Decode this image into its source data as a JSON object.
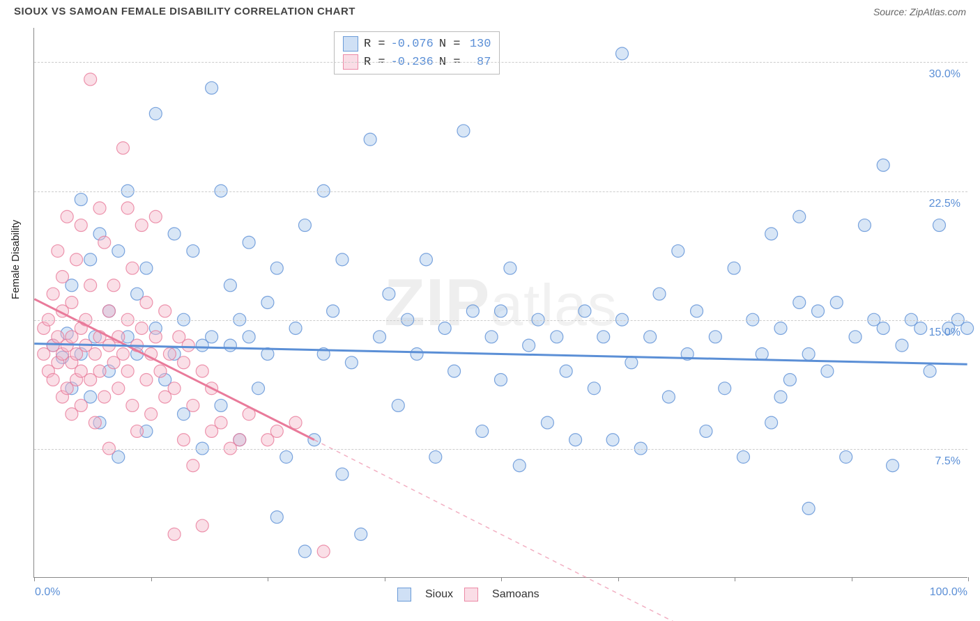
{
  "title": "SIOUX VS SAMOAN FEMALE DISABILITY CORRELATION CHART",
  "source": "Source: ZipAtlas.com",
  "y_axis_title": "Female Disability",
  "watermark_prefix": "ZIP",
  "watermark_suffix": "atlas",
  "chart": {
    "type": "scatter",
    "xlim": [
      0,
      100
    ],
    "ylim": [
      0,
      32
    ],
    "x_start_label": "0.0%",
    "x_end_label": "100.0%",
    "y_ticks": [
      7.5,
      15.0,
      22.5,
      30.0
    ],
    "y_tick_labels": [
      "7.5%",
      "15.0%",
      "22.5%",
      "30.0%"
    ],
    "x_minor_ticks": [
      0,
      12.5,
      25,
      37.5,
      50,
      62.5,
      75,
      87.5,
      100
    ],
    "grid_color": "#cccccc",
    "background_color": "#ffffff",
    "marker_radius": 9,
    "marker_opacity": 0.45,
    "line_width": 3,
    "label_color": "#5b8fd6",
    "axis_font_size": 16
  },
  "series": [
    {
      "name": "Sioux",
      "color_fill": "#a9c7ea",
      "color_stroke": "#5b8fd6",
      "swatch_fill": "#cfe0f5",
      "swatch_border": "#6a9bd8",
      "R": "-0.076",
      "N": "130",
      "trend": {
        "x1": 0,
        "y1": 13.6,
        "x2": 100,
        "y2": 12.4,
        "dashed": false
      },
      "points": [
        [
          2,
          13.5
        ],
        [
          3,
          12.8
        ],
        [
          3.5,
          14.2
        ],
        [
          4,
          11
        ],
        [
          4,
          17
        ],
        [
          5,
          13
        ],
        [
          5,
          22
        ],
        [
          6,
          10.5
        ],
        [
          6,
          18.5
        ],
        [
          6.5,
          14
        ],
        [
          7,
          20
        ],
        [
          7,
          9
        ],
        [
          8,
          15.5
        ],
        [
          8,
          12
        ],
        [
          9,
          19
        ],
        [
          9,
          7
        ],
        [
          10,
          14
        ],
        [
          10,
          22.5
        ],
        [
          11,
          13
        ],
        [
          11,
          16.5
        ],
        [
          12,
          8.5
        ],
        [
          12,
          18
        ],
        [
          13,
          14.5
        ],
        [
          13,
          27
        ],
        [
          14,
          11.5
        ],
        [
          15,
          20
        ],
        [
          15,
          13
        ],
        [
          16,
          9.5
        ],
        [
          16,
          15
        ],
        [
          17,
          19
        ],
        [
          18,
          7.5
        ],
        [
          18,
          13.5
        ],
        [
          19,
          28.5
        ],
        [
          19,
          14
        ],
        [
          20,
          22.5
        ],
        [
          20,
          10
        ],
        [
          21,
          17
        ],
        [
          21,
          13.5
        ],
        [
          22,
          15
        ],
        [
          22,
          8
        ],
        [
          23,
          19.5
        ],
        [
          23,
          14
        ],
        [
          24,
          11
        ],
        [
          25,
          16
        ],
        [
          25,
          13
        ],
        [
          26,
          3.5
        ],
        [
          26,
          18
        ],
        [
          27,
          7
        ],
        [
          28,
          14.5
        ],
        [
          29,
          1.5
        ],
        [
          29,
          20.5
        ],
        [
          30,
          8
        ],
        [
          31,
          13
        ],
        [
          31,
          22.5
        ],
        [
          32,
          15.5
        ],
        [
          33,
          6
        ],
        [
          33,
          18.5
        ],
        [
          34,
          12.5
        ],
        [
          35,
          2.5
        ],
        [
          36,
          25.5
        ],
        [
          37,
          14
        ],
        [
          38,
          16.5
        ],
        [
          39,
          10
        ],
        [
          40,
          15
        ],
        [
          41,
          13
        ],
        [
          42,
          18.5
        ],
        [
          43,
          7
        ],
        [
          44,
          14.5
        ],
        [
          45,
          12
        ],
        [
          46,
          26
        ],
        [
          47,
          15.5
        ],
        [
          48,
          8.5
        ],
        [
          49,
          14
        ],
        [
          50,
          11.5
        ],
        [
          50,
          15.5
        ],
        [
          51,
          18
        ],
        [
          52,
          6.5
        ],
        [
          53,
          13.5
        ],
        [
          54,
          15
        ],
        [
          55,
          9
        ],
        [
          56,
          14
        ],
        [
          57,
          12
        ],
        [
          58,
          8
        ],
        [
          59,
          15.5
        ],
        [
          60,
          11
        ],
        [
          61,
          14
        ],
        [
          62,
          8
        ],
        [
          63,
          30.5
        ],
        [
          63,
          15
        ],
        [
          64,
          12.5
        ],
        [
          65,
          7.5
        ],
        [
          66,
          14
        ],
        [
          67,
          16.5
        ],
        [
          68,
          10.5
        ],
        [
          69,
          19
        ],
        [
          70,
          13
        ],
        [
          71,
          15.5
        ],
        [
          72,
          8.5
        ],
        [
          73,
          14
        ],
        [
          74,
          11
        ],
        [
          75,
          18
        ],
        [
          76,
          7
        ],
        [
          77,
          15
        ],
        [
          78,
          13
        ],
        [
          79,
          20
        ],
        [
          79,
          9
        ],
        [
          80,
          14.5
        ],
        [
          80,
          10.5
        ],
        [
          81,
          11.5
        ],
        [
          82,
          21
        ],
        [
          82,
          16
        ],
        [
          83,
          4
        ],
        [
          83,
          13
        ],
        [
          84,
          15.5
        ],
        [
          85,
          12
        ],
        [
          86,
          16
        ],
        [
          87,
          7
        ],
        [
          88,
          14
        ],
        [
          89,
          20.5
        ],
        [
          90,
          15
        ],
        [
          91,
          14.5
        ],
        [
          91,
          24
        ],
        [
          92,
          6.5
        ],
        [
          93,
          13.5
        ],
        [
          94,
          15
        ],
        [
          95,
          14.5
        ],
        [
          96,
          12
        ],
        [
          97,
          20.5
        ],
        [
          98,
          14.5
        ],
        [
          99,
          15
        ],
        [
          100,
          14.5
        ]
      ]
    },
    {
      "name": "Samoans",
      "color_fill": "#f5b8c9",
      "color_stroke": "#e97a9a",
      "swatch_fill": "#fadde6",
      "swatch_border": "#ec8aa6",
      "R": "-0.236",
      "N": "87",
      "trend": {
        "x1": 0,
        "y1": 16.2,
        "x2": 30,
        "y2": 8.0,
        "dashed_ext_x": 70,
        "dashed_ext_y": -3
      },
      "points": [
        [
          1,
          13
        ],
        [
          1,
          14.5
        ],
        [
          1.5,
          12
        ],
        [
          1.5,
          15
        ],
        [
          2,
          13.5
        ],
        [
          2,
          11.5
        ],
        [
          2,
          16.5
        ],
        [
          2.5,
          14
        ],
        [
          2.5,
          12.5
        ],
        [
          2.5,
          19
        ],
        [
          3,
          13
        ],
        [
          3,
          10.5
        ],
        [
          3,
          15.5
        ],
        [
          3,
          17.5
        ],
        [
          3.5,
          13.5
        ],
        [
          3.5,
          11
        ],
        [
          3.5,
          21
        ],
        [
          4,
          14
        ],
        [
          4,
          12.5
        ],
        [
          4,
          9.5
        ],
        [
          4,
          16
        ],
        [
          4.5,
          13
        ],
        [
          4.5,
          18.5
        ],
        [
          4.5,
          11.5
        ],
        [
          5,
          14.5
        ],
        [
          5,
          12
        ],
        [
          5,
          20.5
        ],
        [
          5,
          10
        ],
        [
          5.5,
          13.5
        ],
        [
          5.5,
          15
        ],
        [
          6,
          11.5
        ],
        [
          6,
          29
        ],
        [
          6,
          17
        ],
        [
          6.5,
          13
        ],
        [
          6.5,
          9
        ],
        [
          7,
          14
        ],
        [
          7,
          21.5
        ],
        [
          7,
          12
        ],
        [
          7.5,
          10.5
        ],
        [
          7.5,
          19.5
        ],
        [
          8,
          13.5
        ],
        [
          8,
          15.5
        ],
        [
          8,
          7.5
        ],
        [
          8.5,
          12.5
        ],
        [
          8.5,
          17
        ],
        [
          9,
          14
        ],
        [
          9,
          11
        ],
        [
          9.5,
          13
        ],
        [
          9.5,
          25
        ],
        [
          10,
          12
        ],
        [
          10,
          15
        ],
        [
          10,
          21.5
        ],
        [
          10.5,
          10
        ],
        [
          10.5,
          18
        ],
        [
          11,
          13.5
        ],
        [
          11,
          8.5
        ],
        [
          11.5,
          14.5
        ],
        [
          11.5,
          20.5
        ],
        [
          12,
          11.5
        ],
        [
          12,
          16
        ],
        [
          12.5,
          13
        ],
        [
          12.5,
          9.5
        ],
        [
          13,
          14
        ],
        [
          13,
          21
        ],
        [
          13.5,
          12
        ],
        [
          14,
          10.5
        ],
        [
          14,
          15.5
        ],
        [
          14.5,
          13
        ],
        [
          15,
          11
        ],
        [
          15,
          2.5
        ],
        [
          15.5,
          14
        ],
        [
          16,
          12.5
        ],
        [
          16,
          8
        ],
        [
          16.5,
          13.5
        ],
        [
          17,
          10
        ],
        [
          17,
          6.5
        ],
        [
          18,
          3
        ],
        [
          18,
          12
        ],
        [
          19,
          8.5
        ],
        [
          19,
          11
        ],
        [
          20,
          9
        ],
        [
          21,
          7.5
        ],
        [
          22,
          8
        ],
        [
          23,
          9.5
        ],
        [
          25,
          8
        ],
        [
          26,
          8.5
        ],
        [
          28,
          9
        ],
        [
          31,
          1.5
        ]
      ]
    }
  ],
  "legend_R_label": "R =",
  "legend_N_label": "N ="
}
